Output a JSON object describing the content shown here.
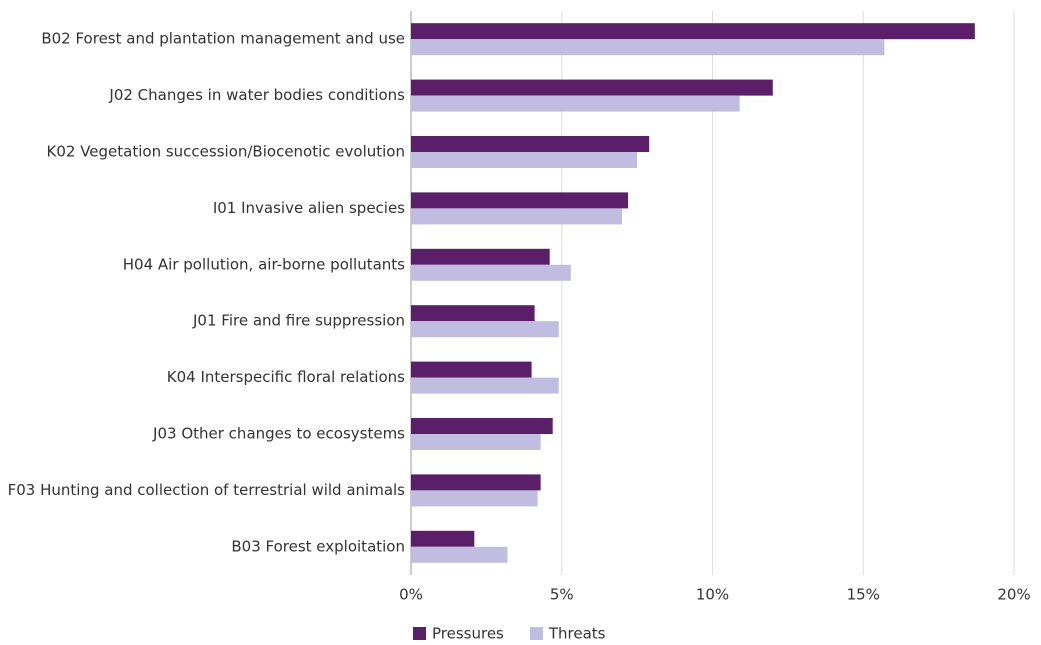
{
  "chart_data": {
    "type": "hbar",
    "categories": [
      "B02 Forest and plantation management and use",
      "J02 Changes in water bodies conditions",
      "K02 Vegetation succession/Biocenotic evolution",
      "I01 Invasive alien species",
      "H04 Air pollution, air-borne pollutants",
      "J01 Fire and fire suppression",
      "K04 Interspecific floral relations",
      "J03 Other changes to ecosystems",
      "F03 Hunting and collection of terrestrial wild animals",
      "B03 Forest exploitation"
    ],
    "series": [
      {
        "name": "Pressures",
        "color": "#5b1f6a",
        "values": [
          18.7,
          12.0,
          7.9,
          7.2,
          4.6,
          4.1,
          4.0,
          4.7,
          4.3,
          2.1
        ]
      },
      {
        "name": "Threats",
        "color": "#c1bde1",
        "values": [
          15.7,
          10.9,
          7.5,
          7.0,
          5.3,
          4.9,
          4.9,
          4.3,
          4.2,
          3.2
        ]
      }
    ],
    "xlim": [
      0,
      20
    ],
    "xticks": [
      {
        "value": 0,
        "label": "0%"
      },
      {
        "value": 5,
        "label": "5%"
      },
      {
        "value": 10,
        "label": "10%"
      },
      {
        "value": 15,
        "label": "15%"
      },
      {
        "value": 20,
        "label": "20%"
      }
    ],
    "grid": true,
    "legend": "bottom"
  }
}
